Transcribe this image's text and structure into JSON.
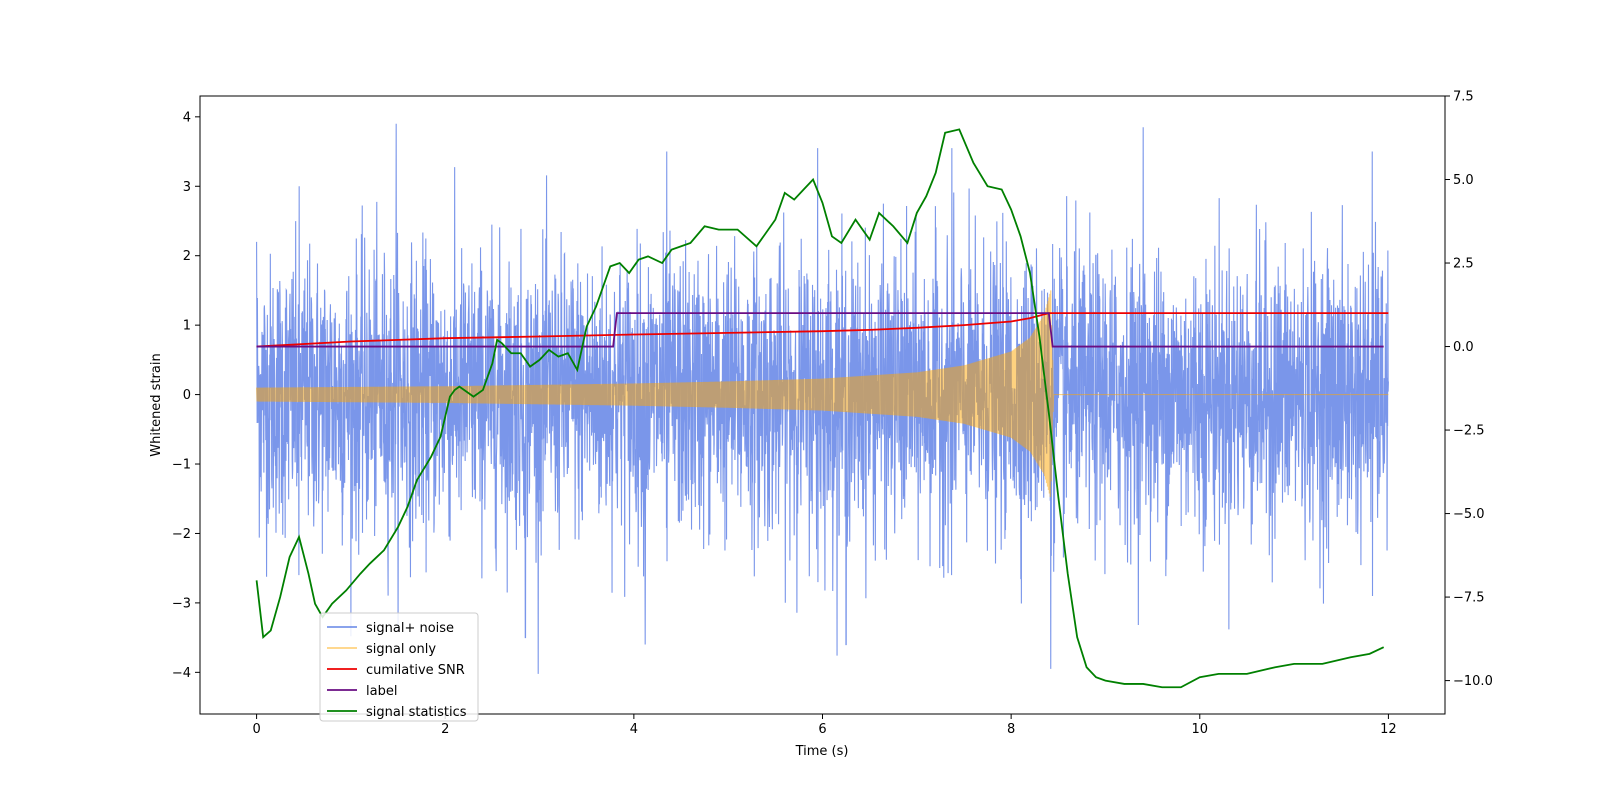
{
  "chart_data": {
    "type": "line",
    "xlabel": "Time (s)",
    "ylabel_left": "Whitened strain",
    "ylabel_right": "",
    "xlim": [
      -0.6,
      12.6
    ],
    "ylim_left": [
      -4.6,
      4.3
    ],
    "ylim_right": [
      -11.0,
      7.5
    ],
    "x_ticks": [
      0,
      2,
      4,
      6,
      8,
      10,
      12
    ],
    "y_ticks_left": [
      -4,
      -3,
      -2,
      -1,
      0,
      1,
      2,
      3,
      4
    ],
    "y_ticks_right": [
      -10.0,
      -7.5,
      -5.0,
      -2.5,
      0.0,
      2.5,
      5.0,
      7.5
    ],
    "grid": false,
    "legend_position": "bottom-left",
    "series": [
      {
        "name": "signal+ noise",
        "axis": "left",
        "color": "#4169e1",
        "alpha": 0.7,
        "style": "noise band",
        "t_start": 0.0,
        "t_end": 12.0,
        "noise_sigma": 1.0,
        "peak_samples": [
          [
            0.0,
            2.2,
            -1.7
          ],
          [
            0.45,
            3.0,
            -2.6
          ],
          [
            1.48,
            3.9,
            -3.0
          ],
          [
            2.85,
            -3.5,
            -3.5
          ],
          [
            4.12,
            -3.6,
            -3.6
          ],
          [
            4.35,
            3.5,
            -2.4
          ],
          [
            5.95,
            3.55,
            -2.7
          ],
          [
            6.25,
            -3.6,
            -3.6
          ],
          [
            7.37,
            3.55,
            -2.6
          ],
          [
            8.42,
            1.0,
            -3.95
          ],
          [
            9.4,
            3.85,
            -2.9
          ],
          [
            11.83,
            3.5,
            -2.9
          ]
        ]
      },
      {
        "name": "signal only",
        "axis": "left",
        "color": "#ffa500",
        "alpha": 0.5,
        "style": "chirp envelope",
        "x": [
          0,
          1,
          2,
          3,
          4,
          5,
          6,
          7,
          7.5,
          8.0,
          8.2,
          8.35,
          8.42,
          8.45,
          12
        ],
        "envelope": [
          0.1,
          0.11,
          0.12,
          0.14,
          0.16,
          0.19,
          0.23,
          0.32,
          0.42,
          0.62,
          0.82,
          1.15,
          1.5,
          0,
          0
        ]
      },
      {
        "name": "cumilative SNR",
        "axis": "right",
        "color": "#ee0000",
        "x": [
          0,
          1,
          2,
          3,
          4,
          5,
          6,
          6.5,
          7,
          7.5,
          8,
          8.2,
          8.4,
          8.45,
          12
        ],
        "values": [
          0.0,
          0.15,
          0.25,
          0.3,
          0.36,
          0.41,
          0.46,
          0.5,
          0.56,
          0.64,
          0.75,
          0.85,
          1.0,
          1.0,
          1.0
        ]
      },
      {
        "name": "label",
        "axis": "right",
        "color": "#6a0d83",
        "x": [
          0,
          3.78,
          3.82,
          8.4,
          8.44,
          11.95
        ],
        "values": [
          0.0,
          0.0,
          1.0,
          1.0,
          0.0,
          0.0
        ]
      },
      {
        "name": "signal statistics",
        "axis": "right",
        "color": "#008000",
        "x": [
          0.0,
          0.07,
          0.15,
          0.25,
          0.35,
          0.45,
          0.55,
          0.62,
          0.7,
          0.8,
          0.95,
          1.1,
          1.2,
          1.35,
          1.5,
          1.6,
          1.7,
          1.85,
          1.95,
          2.0,
          2.05,
          2.1,
          2.15,
          2.3,
          2.4,
          2.5,
          2.55,
          2.6,
          2.7,
          2.8,
          2.9,
          3.0,
          3.1,
          3.2,
          3.3,
          3.4,
          3.5,
          3.6,
          3.75,
          3.85,
          3.95,
          4.05,
          4.15,
          4.3,
          4.4,
          4.6,
          4.75,
          4.9,
          5.1,
          5.3,
          5.5,
          5.6,
          5.7,
          5.8,
          5.9,
          6.0,
          6.1,
          6.2,
          6.35,
          6.5,
          6.6,
          6.75,
          6.9,
          7.0,
          7.1,
          7.2,
          7.3,
          7.45,
          7.6,
          7.75,
          7.9,
          8.0,
          8.1,
          8.2,
          8.3,
          8.4,
          8.5,
          8.6,
          8.7,
          8.8,
          8.9,
          9.0,
          9.2,
          9.4,
          9.6,
          9.8,
          10.0,
          10.2,
          10.5,
          10.8,
          11.0,
          11.3,
          11.6,
          11.8,
          11.95
        ],
        "values": [
          -7.0,
          -8.7,
          -8.5,
          -7.5,
          -6.3,
          -5.7,
          -6.8,
          -7.7,
          -8.1,
          -7.7,
          -7.3,
          -6.8,
          -6.5,
          -6.1,
          -5.4,
          -4.8,
          -4.0,
          -3.3,
          -2.7,
          -2.1,
          -1.5,
          -1.3,
          -1.2,
          -1.5,
          -1.3,
          -0.5,
          0.2,
          0.1,
          -0.2,
          -0.2,
          -0.6,
          -0.4,
          -0.1,
          -0.3,
          -0.2,
          -0.7,
          0.6,
          1.2,
          2.4,
          2.5,
          2.2,
          2.6,
          2.7,
          2.5,
          2.9,
          3.1,
          3.6,
          3.5,
          3.5,
          3.0,
          3.8,
          4.6,
          4.4,
          4.7,
          5.0,
          4.3,
          3.3,
          3.1,
          3.8,
          3.2,
          4.0,
          3.6,
          3.1,
          4.0,
          4.5,
          5.2,
          6.4,
          6.5,
          5.5,
          4.8,
          4.7,
          4.1,
          3.3,
          2.2,
          0.3,
          -2.0,
          -4.5,
          -6.8,
          -8.7,
          -9.6,
          -9.9,
          -10.0,
          -10.1,
          -10.1,
          -10.2,
          -10.2,
          -9.9,
          -9.8,
          -9.8,
          -9.6,
          -9.5,
          -9.5,
          -9.3,
          -9.2,
          -9.0
        ]
      }
    ]
  }
}
